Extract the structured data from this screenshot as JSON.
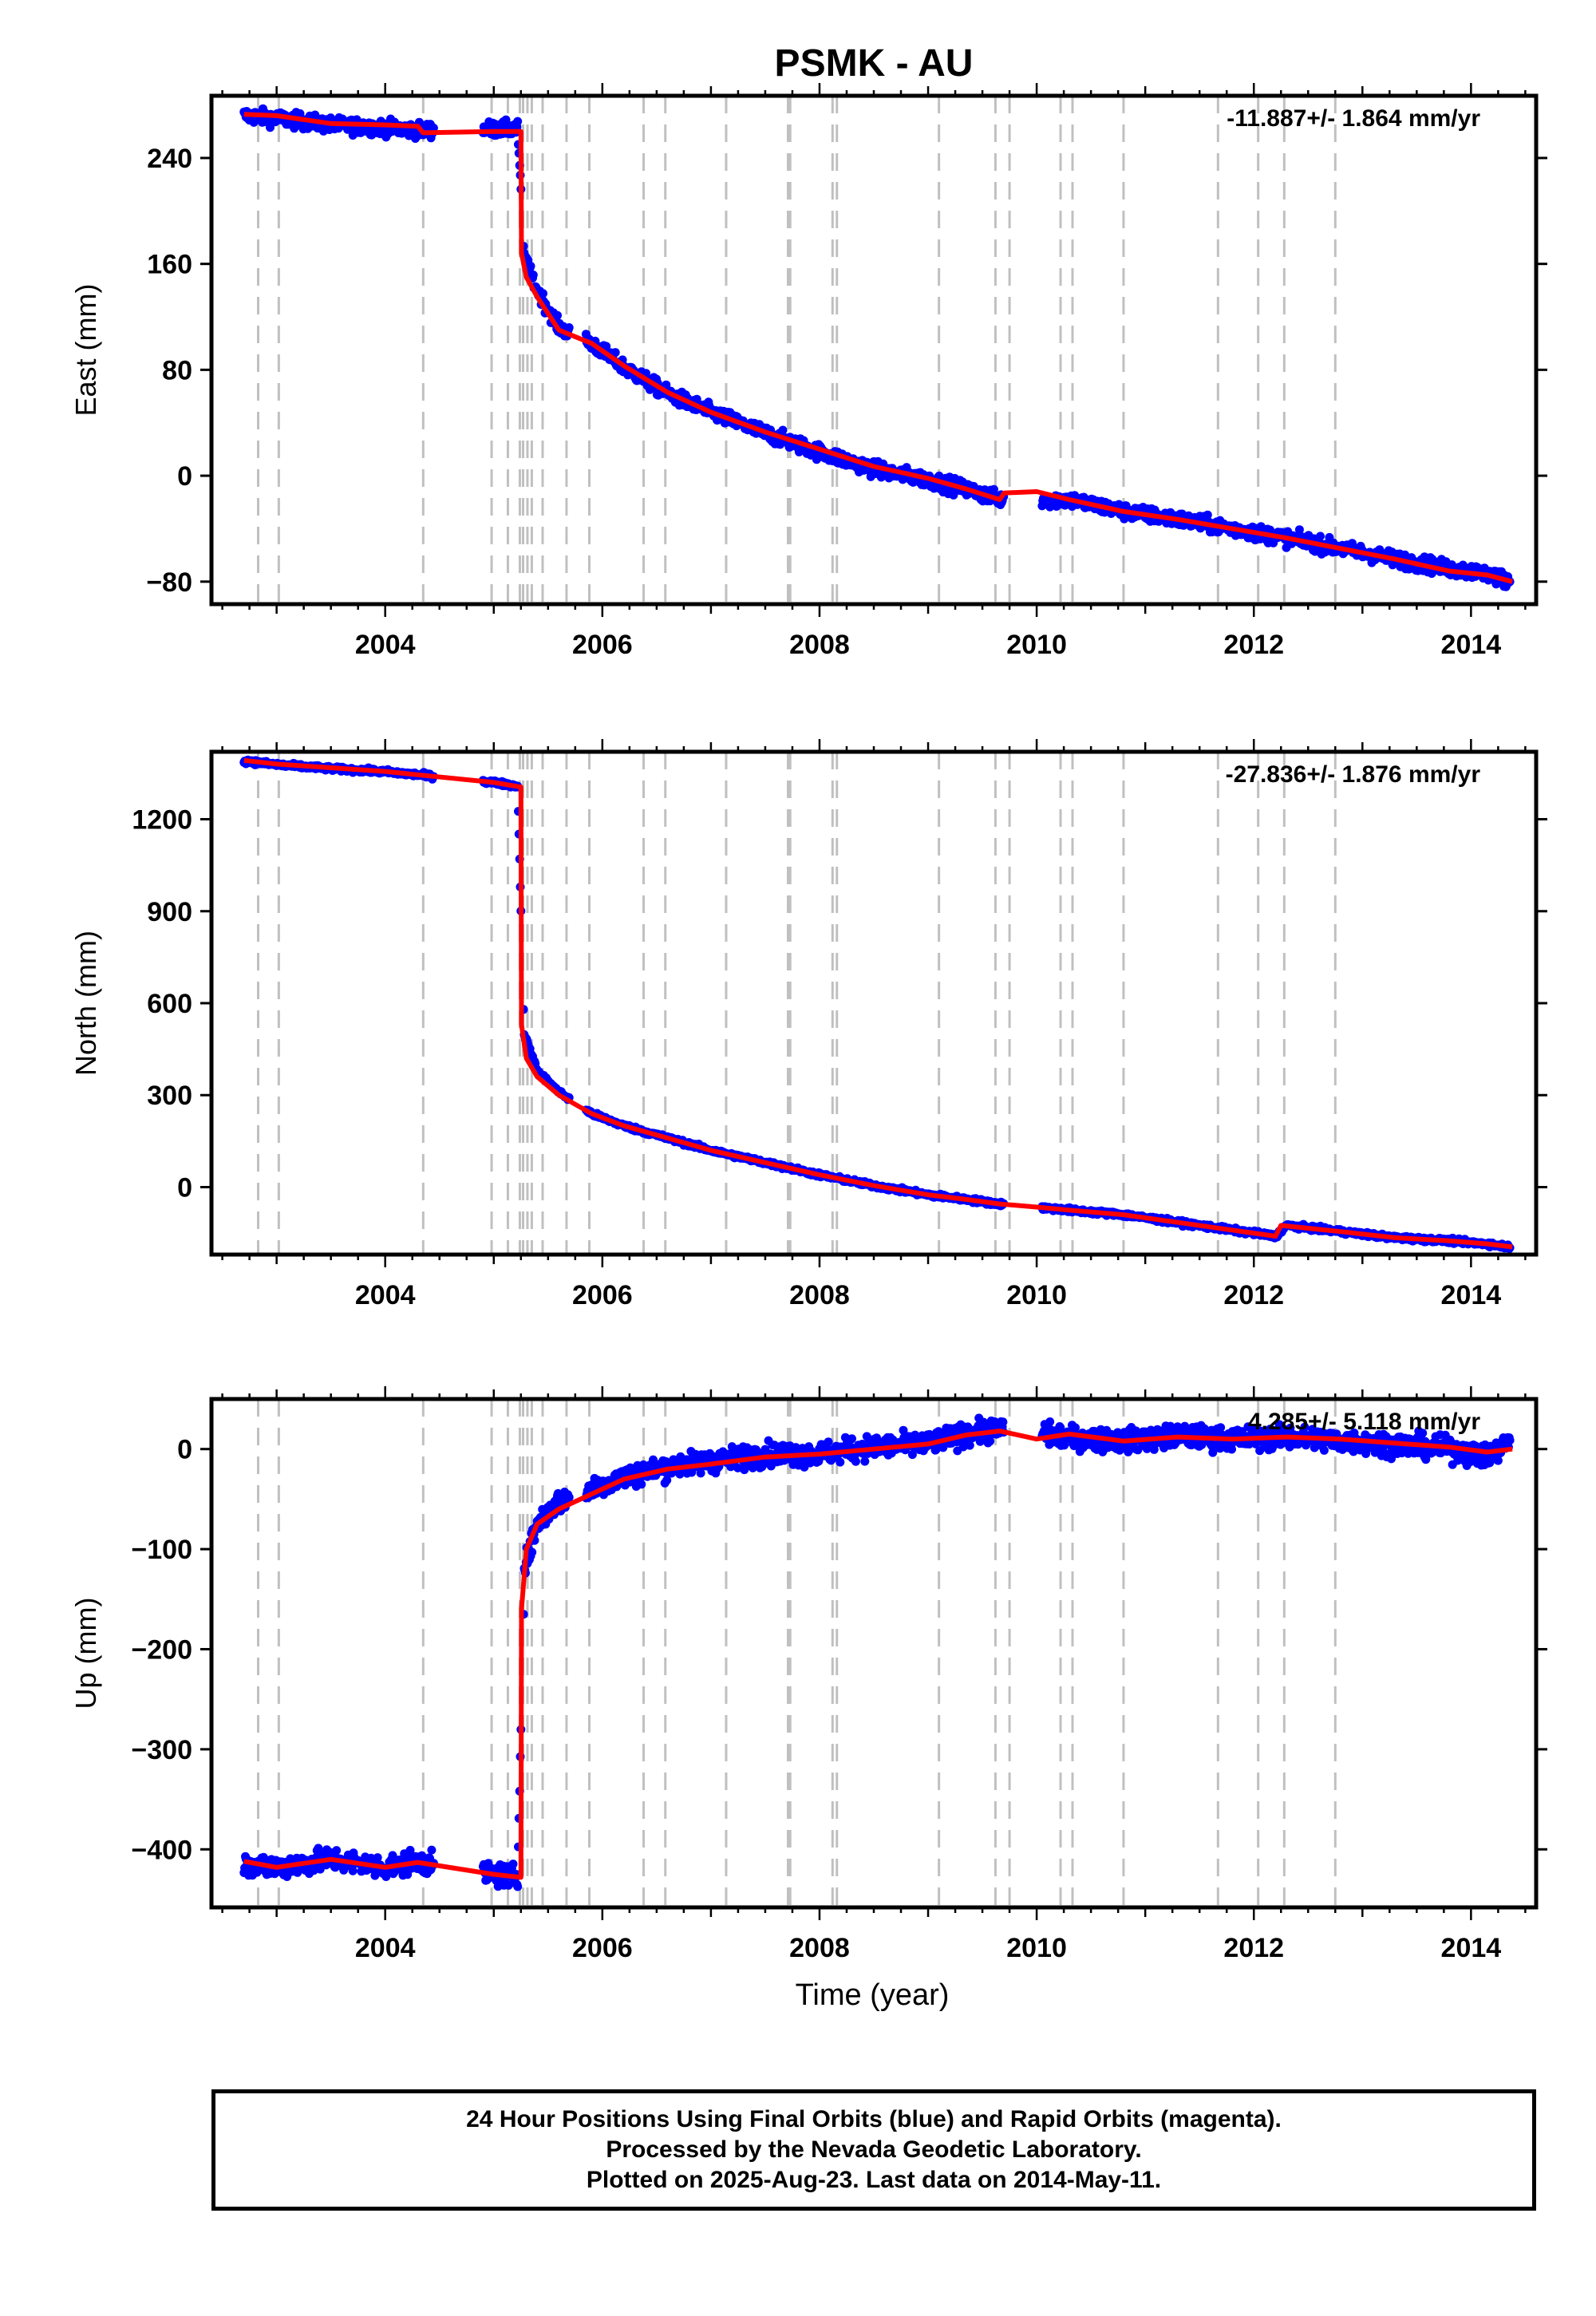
{
  "title": "PSMK - AU",
  "colors": {
    "final_orbits": "#0000ff",
    "model": "#ff0000",
    "events": "#c0c0c0",
    "axis": "#000000"
  },
  "chart_data": [
    {
      "type": "scatter",
      "panel": "east",
      "ylabel": "East (mm)",
      "xlabel": "",
      "rate_label": "-11.887+/- 1.864 mm/yr",
      "xlim": [
        2002.4,
        2014.6
      ],
      "ylim": [
        -97,
        287
      ],
      "yticks": [
        240,
        160,
        80,
        0,
        -80
      ],
      "ytick_labels": [
        "240",
        "160",
        "80",
        "0",
        "−80"
      ],
      "xticks": [
        2004,
        2006,
        2008,
        2010,
        2012,
        2014
      ],
      "xtick_labels": [
        "2004",
        "2006",
        "2008",
        "2010",
        "2012",
        "2014"
      ],
      "grid": false,
      "series": [
        {
          "role": "final_orbits",
          "marker": "dot",
          "scatter_sd": 4,
          "x": [
            2002.7,
            2003.0,
            2003.5,
            2004.0,
            2004.3,
            2005.0,
            2005.22,
            2005.28,
            2005.4,
            2005.6,
            2005.9,
            2006.2,
            2006.6,
            2007.0,
            2007.5,
            2008.0,
            2008.5,
            2009.0,
            2009.35,
            2009.66,
            2010.3,
            2010.8,
            2011.3,
            2011.8,
            2012.3,
            2012.8,
            2013.3,
            2013.8,
            2014.15,
            2014.36
          ],
          "y": [
            272,
            270,
            265,
            263,
            261,
            262,
            262,
            165,
            140,
            112,
            100,
            82,
            62,
            48,
            32,
            18,
            5,
            -3,
            -10,
            -18,
            -18,
            -27,
            -33,
            -40,
            -47,
            -55,
            -63,
            -70,
            -74,
            -80
          ]
        },
        {
          "role": "model",
          "marker": "line",
          "x": [
            2002.7,
            2003.0,
            2003.5,
            2004.0,
            2004.3,
            2004.35,
            2005.0,
            2005.25,
            2005.255,
            2005.3,
            2005.4,
            2005.6,
            2005.9,
            2006.2,
            2006.6,
            2007.0,
            2007.5,
            2008.0,
            2008.5,
            2009.0,
            2009.35,
            2009.66,
            2009.7,
            2010.0,
            2010.3,
            2010.8,
            2011.3,
            2011.8,
            2012.3,
            2012.8,
            2013.3,
            2013.8,
            2014.15,
            2014.38
          ],
          "y": [
            273,
            272,
            266,
            265,
            264,
            259,
            260,
            260,
            168,
            150,
            135,
            110,
            100,
            83,
            63,
            48,
            33,
            20,
            7,
            -2,
            -10,
            -18,
            -13,
            -12,
            -18,
            -27,
            -33,
            -40,
            -47,
            -55,
            -63,
            -72,
            -75,
            -80
          ]
        }
      ],
      "event_years": [
        2002.83,
        2003.02,
        2004.35,
        2004.98,
        2005.13,
        2005.24,
        2005.27,
        2005.31,
        2005.35,
        2005.45,
        2005.67,
        2005.88,
        2006.38,
        2006.58,
        2007.14,
        2007.71,
        2007.73,
        2008.12,
        2008.16,
        2009.1,
        2009.62,
        2009.75,
        2010.22,
        2010.33,
        2010.8,
        2011.67,
        2012.04,
        2012.28,
        2012.75
      ]
    },
    {
      "type": "scatter",
      "panel": "north",
      "ylabel": "North (mm)",
      "xlabel": "",
      "rate_label": "-27.836+/- 1.876 mm/yr",
      "xlim": [
        2002.4,
        2014.6
      ],
      "ylim": [
        -220,
        1420
      ],
      "yticks": [
        1200,
        900,
        600,
        300,
        0
      ],
      "ytick_labels": [
        "1200",
        "900",
        "600",
        "300",
        "0"
      ],
      "xticks": [
        2004,
        2006,
        2008,
        2010,
        2012,
        2014
      ],
      "xtick_labels": [
        "2004",
        "2006",
        "2008",
        "2010",
        "2012",
        "2014"
      ],
      "grid": false,
      "series": [
        {
          "role": "final_orbits",
          "marker": "dot",
          "scatter_sd": 5,
          "x": [
            2002.7,
            2003.0,
            2003.5,
            2004.0,
            2004.3,
            2005.0,
            2005.22,
            2005.28,
            2005.4,
            2005.6,
            2005.9,
            2006.2,
            2006.6,
            2007.0,
            2007.5,
            2008.0,
            2008.5,
            2009.0,
            2009.35,
            2009.66,
            2010.3,
            2010.8,
            2011.3,
            2011.8,
            2012.2,
            2012.3,
            2012.8,
            2013.3,
            2013.8,
            2014.15,
            2014.36
          ],
          "y": [
            1390,
            1378,
            1365,
            1355,
            1345,
            1320,
            1308,
            500,
            380,
            310,
            240,
            200,
            160,
            120,
            80,
            40,
            5,
            -25,
            -40,
            -55,
            -75,
            -90,
            -115,
            -140,
            -160,
            -125,
            -145,
            -165,
            -175,
            -185,
            -195
          ]
        },
        {
          "role": "model",
          "marker": "line",
          "x": [
            2002.7,
            2003.0,
            2003.5,
            2004.0,
            2004.3,
            2005.0,
            2005.25,
            2005.255,
            2005.3,
            2005.4,
            2005.6,
            2005.9,
            2006.2,
            2006.6,
            2007.0,
            2007.5,
            2008.0,
            2008.5,
            2009.0,
            2009.35,
            2009.66,
            2010.0,
            2010.3,
            2010.8,
            2011.3,
            2011.8,
            2012.2,
            2012.25,
            2012.8,
            2013.3,
            2013.8,
            2014.15,
            2014.38
          ],
          "y": [
            1392,
            1380,
            1368,
            1356,
            1345,
            1320,
            1305,
            530,
            420,
            360,
            300,
            240,
            200,
            160,
            120,
            80,
            40,
            5,
            -25,
            -40,
            -55,
            -65,
            -75,
            -90,
            -115,
            -140,
            -160,
            -125,
            -145,
            -165,
            -175,
            -185,
            -195
          ]
        }
      ],
      "event_years": [
        2002.83,
        2003.02,
        2004.35,
        2004.98,
        2005.13,
        2005.24,
        2005.27,
        2005.31,
        2005.35,
        2005.45,
        2005.67,
        2005.88,
        2006.38,
        2006.58,
        2007.14,
        2007.71,
        2007.73,
        2008.12,
        2008.16,
        2009.1,
        2009.62,
        2009.75,
        2010.22,
        2010.33,
        2010.8,
        2011.67,
        2012.04,
        2012.28,
        2012.75
      ]
    },
    {
      "type": "scatter",
      "panel": "up",
      "ylabel": "Up (mm)",
      "xlabel": "Time (year)",
      "rate_label": "4.285+/- 5.118 mm/yr",
      "xlim": [
        2002.4,
        2014.6
      ],
      "ylim": [
        -458,
        50
      ],
      "yticks": [
        0,
        -100,
        -200,
        -300,
        -400
      ],
      "ytick_labels": [
        "0",
        "−100",
        "−200",
        "−300",
        "−400"
      ],
      "xticks": [
        2004,
        2006,
        2008,
        2010,
        2012,
        2014
      ],
      "xtick_labels": [
        "2004",
        "2006",
        "2008",
        "2010",
        "2012",
        "2014"
      ],
      "grid": false,
      "series": [
        {
          "role": "final_orbits",
          "marker": "dot",
          "scatter_sd": 8,
          "x": [
            2002.7,
            2003.0,
            2003.5,
            2004.0,
            2004.3,
            2005.0,
            2005.22,
            2005.28,
            2005.4,
            2005.6,
            2005.9,
            2006.2,
            2006.6,
            2007.0,
            2007.5,
            2008.0,
            2008.5,
            2009.0,
            2009.35,
            2009.66,
            2010.3,
            2010.8,
            2011.3,
            2011.8,
            2012.3,
            2012.8,
            2013.3,
            2013.8,
            2014.15,
            2014.36
          ],
          "y": [
            -415,
            -418,
            -410,
            -418,
            -412,
            -425,
            -428,
            -120,
            -75,
            -52,
            -40,
            -28,
            -18,
            -12,
            -5,
            -5,
            2,
            5,
            15,
            20,
            12,
            8,
            13,
            10,
            12,
            8,
            5,
            0,
            -8,
            8
          ]
        },
        {
          "role": "model",
          "marker": "line",
          "x": [
            2002.7,
            2003.0,
            2003.5,
            2004.0,
            2004.3,
            2005.0,
            2005.25,
            2005.255,
            2005.3,
            2005.4,
            2005.6,
            2005.9,
            2006.2,
            2006.6,
            2007.0,
            2007.5,
            2008.0,
            2008.5,
            2009.0,
            2009.35,
            2009.66,
            2010.0,
            2010.3,
            2010.8,
            2011.3,
            2011.8,
            2012.3,
            2012.8,
            2013.3,
            2013.8,
            2014.15,
            2014.38
          ],
          "y": [
            -412,
            -418,
            -410,
            -418,
            -413,
            -425,
            -428,
            -160,
            -100,
            -75,
            -60,
            -45,
            -30,
            -20,
            -15,
            -8,
            -5,
            0,
            5,
            14,
            18,
            10,
            15,
            8,
            12,
            10,
            12,
            10,
            6,
            2,
            -3,
            0
          ]
        }
      ],
      "event_years": [
        2002.83,
        2003.02,
        2004.35,
        2004.98,
        2005.13,
        2005.24,
        2005.27,
        2005.31,
        2005.35,
        2005.45,
        2005.67,
        2005.88,
        2006.38,
        2006.58,
        2007.14,
        2007.71,
        2007.73,
        2008.12,
        2008.16,
        2009.1,
        2009.62,
        2009.75,
        2010.22,
        2010.33,
        2010.8,
        2011.67,
        2012.04,
        2012.28,
        2012.75
      ]
    }
  ],
  "caption": {
    "line1": "24 Hour Positions Using Final Orbits (blue) and Rapid Orbits (magenta).",
    "line2": "Processed by the Nevada Geodetic Laboratory.",
    "line3": "Plotted on 2025-Aug-23. Last data on 2014-May-11."
  }
}
